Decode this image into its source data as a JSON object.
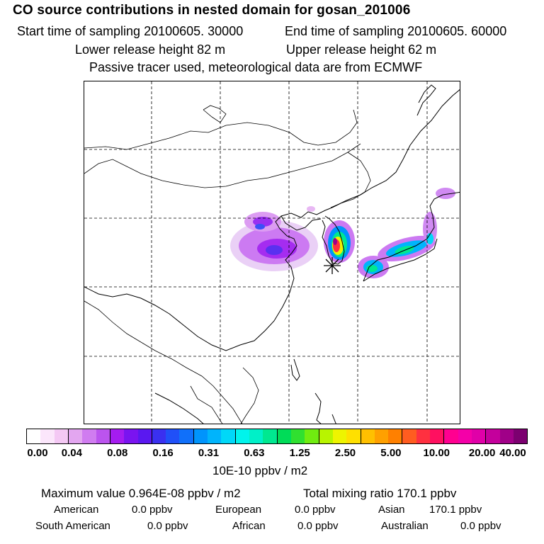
{
  "header": {
    "title": "CO  source contributions in nested domain for gosan_201006",
    "start_time": "Start time of sampling 20100605. 30000",
    "end_time": "End time of sampling 20100605. 60000",
    "lower_release": "Lower release height   82 m",
    "upper_release": "Upper release height   62 m",
    "tracer_note": "Passive tracer used, meteorological data are from ECMWF"
  },
  "colorbar": {
    "ticks": [
      "0.00",
      "0.04",
      "0.08",
      "0.16",
      "0.31",
      "0.63",
      "1.25",
      "2.50",
      "5.00",
      "10.00",
      "20.00",
      "40.00"
    ],
    "units": "10E-10 ppbv / m2",
    "colors": [
      "#ffffff",
      "#fbe6fb",
      "#f4c8f4",
      "#e3a6f0",
      "#d07cf0",
      "#bb54ee",
      "#a51cf0",
      "#7a14f0",
      "#5a18f0",
      "#3a30f0",
      "#2050f8",
      "#1070fa",
      "#0094fc",
      "#00b4fc",
      "#00d8f8",
      "#00f4ec",
      "#00f0c8",
      "#00e890",
      "#00dc58",
      "#30e030",
      "#70ec10",
      "#b8f400",
      "#eef400",
      "#ffe000",
      "#ffc000",
      "#ffa000",
      "#ff8000",
      "#ff5c20",
      "#ff3040",
      "#ff1060",
      "#ff0090",
      "#f400a8",
      "#e000a8",
      "#c4009c",
      "#a00088",
      "#7c0070"
    ]
  },
  "summary": {
    "max_value": "Maximum value  0.964E-08 ppbv / m2",
    "total_mixing_ratio": "Total mixing ratio      170.1 ppbv"
  },
  "sources": [
    {
      "name": "American",
      "value": "0.0 ppbv"
    },
    {
      "name": "European",
      "value": "0.0 ppbv"
    },
    {
      "name": "Asian",
      "value": "170.1 ppbv"
    },
    {
      "name": "South American",
      "value": "0.0 ppbv"
    },
    {
      "name": "African",
      "value": "0.0 ppbv"
    },
    {
      "name": "Australian",
      "value": "0.0 ppbv"
    }
  ]
}
